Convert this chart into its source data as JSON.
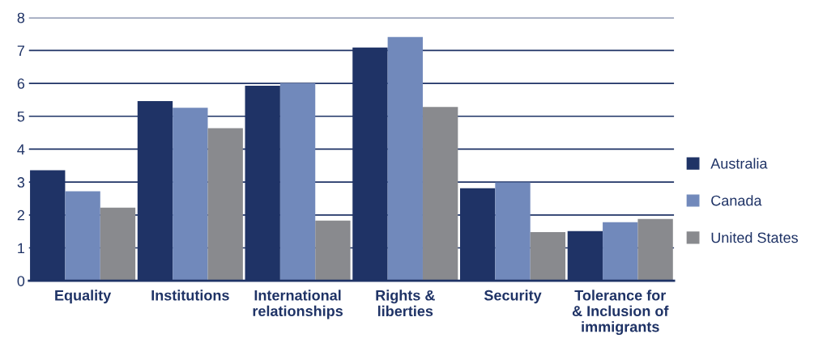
{
  "chart_data": {
    "type": "bar",
    "categories": [
      "Equality",
      "Institutions",
      "International\nrelationships",
      "Rights &\nliberties",
      "Security",
      "Tolerance for\n& Inclusion of\nimmigrants"
    ],
    "series": [
      {
        "name": "Australia",
        "color": "#1f3366",
        "values": [
          3.36,
          5.46,
          5.93,
          7.09,
          2.81,
          1.51
        ]
      },
      {
        "name": "Canada",
        "color": "#7189bb",
        "values": [
          2.72,
          5.26,
          6.0,
          7.41,
          2.99,
          1.78
        ]
      },
      {
        "name": "United States",
        "color": "#898a8e",
        "values": [
          2.22,
          4.64,
          1.83,
          5.28,
          1.48,
          1.88
        ]
      }
    ],
    "ylim": [
      0,
      8
    ],
    "yticks": [
      0,
      1,
      2,
      3,
      4,
      5,
      6,
      7,
      8
    ],
    "grid": "y",
    "legend": "right"
  }
}
